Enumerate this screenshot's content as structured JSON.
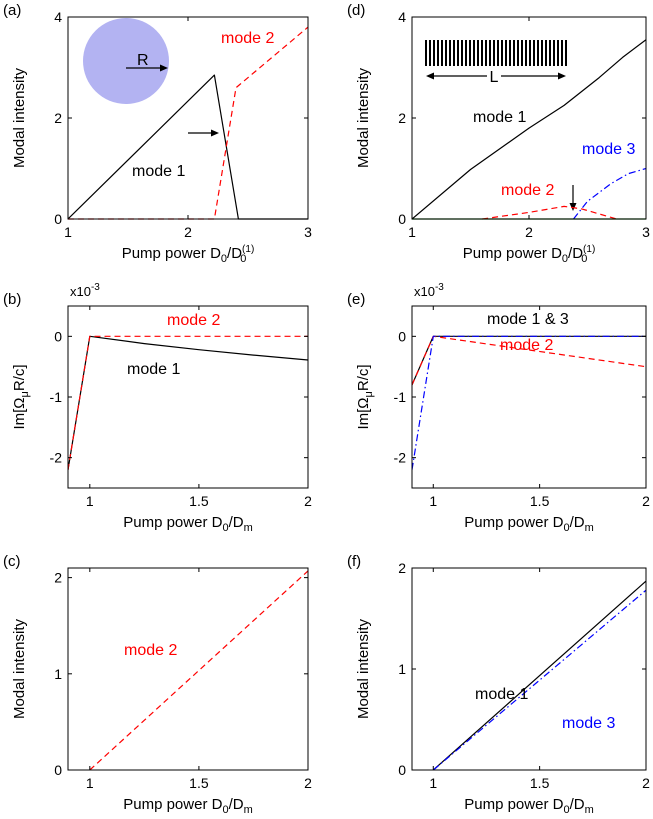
{
  "colors": {
    "mode1": "#000000",
    "mode2": "#ff0000",
    "mode3": "#0000ff",
    "green": "#008000",
    "disk": "#b3b3f2"
  },
  "chart_data": [
    {
      "id": "a",
      "type": "line",
      "panel_label": "(a)",
      "xlabel": "Pump power D0/D0(1)",
      "ylabel": "Modal intensity",
      "xlim": [
        1,
        3
      ],
      "ylim": [
        0,
        4
      ],
      "xticks": [
        1,
        2,
        3
      ],
      "yticks": [
        0,
        2,
        4
      ],
      "xticklabels": [
        "1",
        "2",
        "3"
      ],
      "yticklabels": [
        "0",
        "2",
        "4"
      ],
      "series": [
        {
          "name": "mode 1",
          "style": "solid",
          "color": "#000000",
          "x": [
            1.0,
            2.22,
            2.42,
            3.0
          ],
          "y": [
            0.0,
            2.85,
            0.0,
            0.0
          ]
        },
        {
          "name": "mode 2",
          "style": "dashed",
          "color": "#ff0000",
          "x": [
            1.0,
            2.22,
            2.4,
            3.0
          ],
          "y": [
            0.0,
            0.0,
            2.6,
            3.8
          ]
        }
      ],
      "annotations": [
        {
          "text": "mode 1",
          "color": "#000000"
        },
        {
          "text": "mode 2",
          "color": "#ff0000"
        }
      ],
      "inset_label": "R"
    },
    {
      "id": "b",
      "type": "line",
      "panel_label": "(b)",
      "xlabel": "Pump power D0/Dm",
      "ylabel": "Im[ΩμR/c]",
      "exponent": "x10-3",
      "xlim": [
        0.9,
        2
      ],
      "ylim": [
        -2.5,
        0.5
      ],
      "xticks": [
        1,
        1.5,
        2
      ],
      "yticks": [
        -2,
        -1,
        0
      ],
      "xticklabels": [
        "1",
        "1.5",
        "2"
      ],
      "yticklabels": [
        "-2",
        "-1",
        "0"
      ],
      "series": [
        {
          "name": "mode 1",
          "style": "solid",
          "color": "#000000",
          "x": [
            0.9,
            1.0,
            1.25,
            1.5,
            1.75,
            2.0
          ],
          "y": [
            -2.2,
            0.0,
            -0.12,
            -0.22,
            -0.31,
            -0.39
          ]
        },
        {
          "name": "mode 2",
          "style": "dashed",
          "color": "#ff0000",
          "x": [
            0.9,
            1.0,
            2.0
          ],
          "y": [
            -2.2,
            0.0,
            0.0
          ]
        }
      ],
      "annotations": [
        {
          "text": "mode 2",
          "color": "#ff0000"
        },
        {
          "text": "mode 1",
          "color": "#000000"
        }
      ]
    },
    {
      "id": "c",
      "type": "line",
      "panel_label": "(c)",
      "xlabel": "Pump power D0/Dm",
      "ylabel": "Modal intensity",
      "xlim": [
        0.9,
        2
      ],
      "ylim": [
        0,
        2.1
      ],
      "xticks": [
        1,
        1.5,
        2
      ],
      "yticks": [
        0,
        1,
        2
      ],
      "xticklabels": [
        "1",
        "1.5",
        "2"
      ],
      "yticklabels": [
        "0",
        "1",
        "2"
      ],
      "series": [
        {
          "name": "mode 2",
          "style": "dashed",
          "color": "#ff0000",
          "x": [
            1.0,
            2.0
          ],
          "y": [
            0.0,
            2.07
          ]
        }
      ],
      "annotations": [
        {
          "text": "mode 2",
          "color": "#ff0000"
        }
      ]
    },
    {
      "id": "d",
      "type": "line",
      "panel_label": "(d)",
      "xlabel": "Pump power D0/D0(1)",
      "ylabel": "Modal intensity",
      "xlim": [
        1,
        3
      ],
      "ylim": [
        0,
        4
      ],
      "xticks": [
        1,
        2,
        3
      ],
      "yticks": [
        0,
        2,
        4
      ],
      "xticklabels": [
        "1",
        "2",
        "3"
      ],
      "yticklabels": [
        "0",
        "2",
        "4"
      ],
      "series": [
        {
          "name": "mode 1",
          "style": "solid",
          "color": "#000000",
          "x": [
            1.0,
            1.5,
            2.0,
            2.3,
            2.6,
            2.8,
            3.0
          ],
          "y": [
            0.0,
            0.98,
            1.8,
            2.25,
            2.8,
            3.2,
            3.55
          ]
        },
        {
          "name": "mode 2",
          "style": "dashed",
          "color": "#ff0000",
          "x": [
            1.6,
            2.0,
            2.3,
            2.45,
            2.75
          ],
          "y": [
            0.0,
            0.13,
            0.25,
            0.2,
            0.0
          ]
        },
        {
          "name": "mode 3",
          "style": "dashdot",
          "color": "#0000ff",
          "x": [
            2.38,
            2.5,
            2.7,
            2.85,
            3.0
          ],
          "y": [
            0.0,
            0.35,
            0.7,
            0.9,
            1.0
          ]
        },
        {
          "name": "",
          "style": "solid",
          "color": "#008000",
          "x": [
            1.0,
            3.0
          ],
          "y": [
            0.0,
            0.0
          ]
        }
      ],
      "annotations": [
        {
          "text": "mode 1",
          "color": "#000000"
        },
        {
          "text": "mode 3",
          "color": "#0000ff"
        },
        {
          "text": "mode 2",
          "color": "#ff0000"
        }
      ],
      "inset_label": "L"
    },
    {
      "id": "e",
      "type": "line",
      "panel_label": "(e)",
      "xlabel": "Pump power D0/Dm",
      "ylabel": "Im[ΩμR/c]",
      "exponent": "x10-3",
      "xlim": [
        0.9,
        2
      ],
      "ylim": [
        -2.5,
        0.5
      ],
      "xticks": [
        1,
        1.5,
        2
      ],
      "yticks": [
        -2,
        -1,
        0
      ],
      "xticklabels": [
        "1",
        "1.5",
        "2"
      ],
      "yticklabels": [
        "-2",
        "-1",
        "0"
      ],
      "series": [
        {
          "name": "mode 1",
          "style": "solid",
          "color": "#000000",
          "x": [
            0.9,
            1.0,
            2.0
          ],
          "y": [
            -0.8,
            0.0,
            0.0
          ]
        },
        {
          "name": "mode 2",
          "style": "dashed",
          "color": "#ff0000",
          "x": [
            0.9,
            1.0,
            2.0
          ],
          "y": [
            -0.8,
            0.0,
            -0.5
          ]
        },
        {
          "name": "mode 3",
          "style": "dashdot",
          "color": "#0000ff",
          "x": [
            0.9,
            1.0,
            2.0
          ],
          "y": [
            -2.2,
            0.0,
            0.0
          ]
        }
      ],
      "annotations": [
        {
          "text": "mode 1 & 3",
          "color": "#000000"
        },
        {
          "text": "mode 2",
          "color": "#ff0000"
        }
      ]
    },
    {
      "id": "f",
      "type": "line",
      "panel_label": "(f)",
      "xlabel": "Pump power D0/Dm",
      "ylabel": "Modal intensity",
      "xlim": [
        0.9,
        2
      ],
      "ylim": [
        0,
        2
      ],
      "xticks": [
        1,
        1.5,
        2
      ],
      "yticks": [
        0,
        1,
        2
      ],
      "xticklabels": [
        "1",
        "1.5",
        "2"
      ],
      "yticklabels": [
        "0",
        "1",
        "2"
      ],
      "series": [
        {
          "name": "mode 1",
          "style": "solid",
          "color": "#000000",
          "x": [
            1.0,
            2.0
          ],
          "y": [
            0.0,
            1.87
          ]
        },
        {
          "name": "mode 3",
          "style": "dashdot",
          "color": "#0000ff",
          "x": [
            1.0,
            2.0
          ],
          "y": [
            0.0,
            1.78
          ]
        }
      ],
      "annotations": [
        {
          "text": "mode 1",
          "color": "#000000"
        },
        {
          "text": "mode 3",
          "color": "#0000ff"
        }
      ]
    }
  ]
}
